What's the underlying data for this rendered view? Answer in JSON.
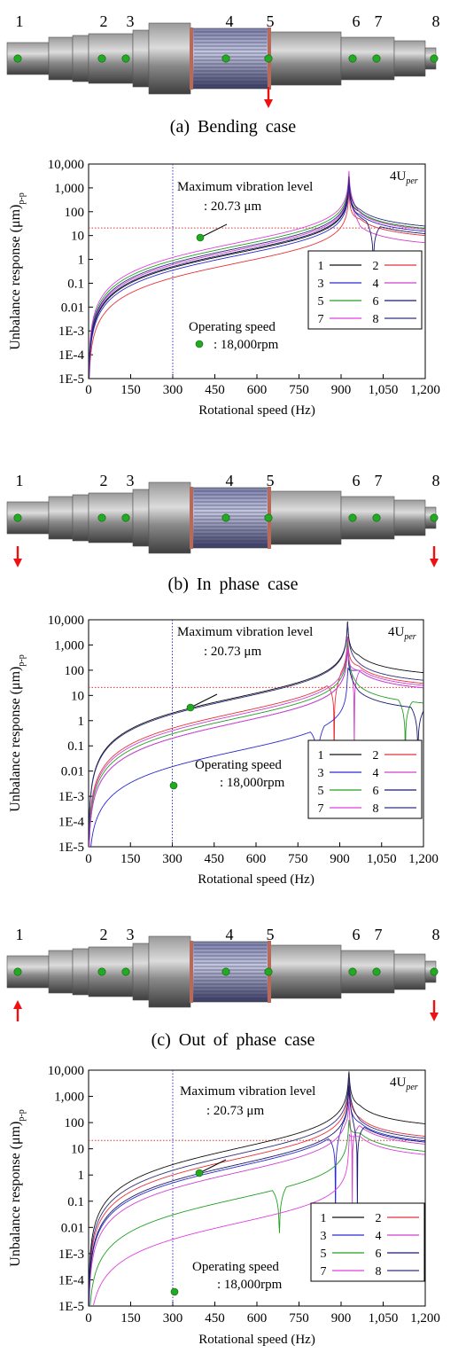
{
  "figure": {
    "shaft_node_labels": [
      "1",
      "2",
      "3",
      "4",
      "5",
      "6",
      "7",
      "8"
    ],
    "panels": [
      {
        "caption": "(a)  Bending  case",
        "force_nodes": [
          {
            "node": 5,
            "dir": "down"
          }
        ]
      },
      {
        "caption": "(b)  In  phase  case",
        "force_nodes": [
          {
            "node": 1,
            "dir": "down"
          },
          {
            "node": 8,
            "dir": "down"
          }
        ]
      },
      {
        "caption": "(c)  Out  of  phase  case",
        "force_nodes": [
          {
            "node": 1,
            "dir": "up"
          },
          {
            "node": 8,
            "dir": "down"
          }
        ]
      }
    ],
    "colors": {
      "force_arrow": "#ee1111",
      "node_dot": "#22aa22",
      "ref_line": "#dd3333",
      "op_line": "#3333cc"
    }
  },
  "chart_data": [
    {
      "type": "line",
      "title": "",
      "corner_label": "4U",
      "corner_label_sub": "per",
      "xlabel": "Rotational speed (Hz)",
      "ylabel": "Unbalance response (μm)",
      "ylabel_sub": "p-p",
      "xlim": [
        0,
        1200
      ],
      "y_scale": "log",
      "ylim": [
        1e-05,
        10000
      ],
      "x_ticks": [
        "0",
        "150",
        "300",
        "450",
        "600",
        "750",
        "900",
        "1,050",
        "1,200"
      ],
      "y_ticks": [
        "1E-5",
        "1E-4",
        "1E-3",
        "0.01",
        "0.1",
        "1",
        "10",
        "100",
        "1,000",
        "10,000"
      ],
      "max_level_text": [
        "Maximum vibration level",
        ": 20.73 μm"
      ],
      "operating_speed_text": [
        "Operating speed",
        ": 18,000rpm"
      ],
      "max_vibration_level_um": 20.73,
      "operating_speed_hz": 300,
      "resonance_hz": 928,
      "legend_position": "lower-right",
      "series": [
        {
          "name": "1",
          "color": "#111111",
          "y_at_300": 0.45,
          "y_at_1200": 20,
          "antiresonance_hz": null
        },
        {
          "name": "2",
          "color": "#e8333a",
          "y_at_300": 0.17,
          "y_at_1200": 10,
          "antiresonance_hz": null
        },
        {
          "name": "3",
          "color": "#2a2ad0",
          "y_at_300": 0.35,
          "y_at_1200": 15,
          "antiresonance_hz": null
        },
        {
          "name": "4",
          "color": "#d040d0",
          "y_at_300": 0.6,
          "y_at_1200": 5,
          "antiresonance_hz": null
        },
        {
          "name": "5",
          "color": "#22a022",
          "y_at_300": 0.9,
          "y_at_1200": 20,
          "antiresonance_hz": null
        },
        {
          "name": "6",
          "color": "#1a1a70",
          "y_at_300": 0.5,
          "y_at_1200": 12,
          "antiresonance_hz": 1015
        },
        {
          "name": "7",
          "color": "#e040e0",
          "y_at_300": 1.2,
          "y_at_1200": 18,
          "antiresonance_hz": null
        },
        {
          "name": "8",
          "color": "#303080",
          "y_at_300": 0.7,
          "y_at_1200": 25,
          "antiresonance_hz": null
        }
      ]
    },
    {
      "type": "line",
      "title": "",
      "corner_label": "4U",
      "corner_label_sub": "per",
      "xlabel": "Rotational speed (Hz)",
      "ylabel": "Unbalance response (μm)",
      "ylabel_sub": "p-p",
      "xlim": [
        0,
        1200
      ],
      "y_scale": "log",
      "ylim": [
        1e-05,
        10000
      ],
      "x_ticks": [
        "0",
        "150",
        "300",
        "450",
        "600",
        "750",
        "900",
        "1,050",
        "1,200"
      ],
      "y_ticks": [
        "1E-5",
        "1E-4",
        "1E-3",
        "0.01",
        "0.1",
        "1",
        "10",
        "100",
        "1,000",
        "10,000"
      ],
      "max_level_text": [
        "Maximum vibration level",
        ": 20.73 μm"
      ],
      "operating_speed_text": [
        "Operating speed",
        ": 18,000rpm"
      ],
      "max_vibration_level_um": 20.73,
      "operating_speed_hz": 300,
      "resonance_hz": 928,
      "legend_position": "lower-right",
      "series": [
        {
          "name": "1",
          "color": "#111111",
          "y_at_300": 2.0,
          "y_at_1200": 80,
          "antiresonance_hz": null
        },
        {
          "name": "2",
          "color": "#e8333a",
          "y_at_300": 0.5,
          "y_at_1200": 30,
          "antiresonance_hz": 880
        },
        {
          "name": "3",
          "color": "#2a2ad0",
          "y_at_300": 0.015,
          "y_at_1200": 20,
          "antiresonance_hz": 820
        },
        {
          "name": "4",
          "color": "#d040d0",
          "y_at_300": 0.4,
          "y_at_1200": 25,
          "antiresonance_hz": 952
        },
        {
          "name": "5",
          "color": "#22a022",
          "y_at_300": 0.3,
          "y_at_1200": 5,
          "antiresonance_hz": 1135
        },
        {
          "name": "6",
          "color": "#1a1a70",
          "y_at_300": 0.2,
          "y_at_1200": 3,
          "antiresonance_hz": 1180
        },
        {
          "name": "7",
          "color": "#e040e0",
          "y_at_300": 0.2,
          "y_at_1200": 20,
          "antiresonance_hz": null
        },
        {
          "name": "8",
          "color": "#303080",
          "y_at_300": 1.8,
          "y_at_1200": 40,
          "antiresonance_hz": null
        }
      ]
    },
    {
      "type": "line",
      "title": "",
      "corner_label": "4U",
      "corner_label_sub": "per",
      "xlabel": "Rotational speed (Hz)",
      "ylabel": "Unbalance response (μm)",
      "ylabel_sub": "p-p",
      "xlim": [
        0,
        1200
      ],
      "y_scale": "log",
      "ylim": [
        1e-05,
        10000
      ],
      "x_ticks": [
        "0",
        "150",
        "300",
        "450",
        "600",
        "750",
        "900",
        "1,050",
        "1,200"
      ],
      "y_ticks": [
        "1E-5",
        "1E-4",
        "1E-3",
        "0.01",
        "0.1",
        "1",
        "10",
        "100",
        "1,000",
        "10,000"
      ],
      "max_level_text": [
        "Maximum vibration level",
        ": 20.73 μm"
      ],
      "operating_speed_text": [
        "Operating speed",
        ": 18,000rpm"
      ],
      "max_vibration_level_um": 20.73,
      "operating_speed_hz": 300,
      "resonance_hz": 928,
      "legend_position": "lower-right",
      "series": [
        {
          "name": "1",
          "color": "#111111",
          "y_at_300": 2.5,
          "y_at_1200": 90,
          "antiresonance_hz": null
        },
        {
          "name": "2",
          "color": "#e8333a",
          "y_at_300": 1.0,
          "y_at_1200": 30,
          "antiresonance_hz": null
        },
        {
          "name": "3",
          "color": "#2a2ad0",
          "y_at_300": 0.5,
          "y_at_1200": 20,
          "antiresonance_hz": 880
        },
        {
          "name": "4",
          "color": "#d040d0",
          "y_at_300": 0.3,
          "y_at_1200": 15,
          "antiresonance_hz": 940
        },
        {
          "name": "5",
          "color": "#22a022",
          "y_at_300": 0.03,
          "y_at_1200": 8,
          "antiresonance_hz": 680
        },
        {
          "name": "6",
          "color": "#1a1a70",
          "y_at_300": 0.6,
          "y_at_1200": 18,
          "antiresonance_hz": 958
        },
        {
          "name": "7",
          "color": "#e040e0",
          "y_at_300": 0.0035,
          "y_at_1200": 6,
          "antiresonance_hz": null
        },
        {
          "name": "8",
          "color": "#303080",
          "y_at_300": 1.5,
          "y_at_1200": 25,
          "antiresonance_hz": null
        }
      ]
    }
  ]
}
